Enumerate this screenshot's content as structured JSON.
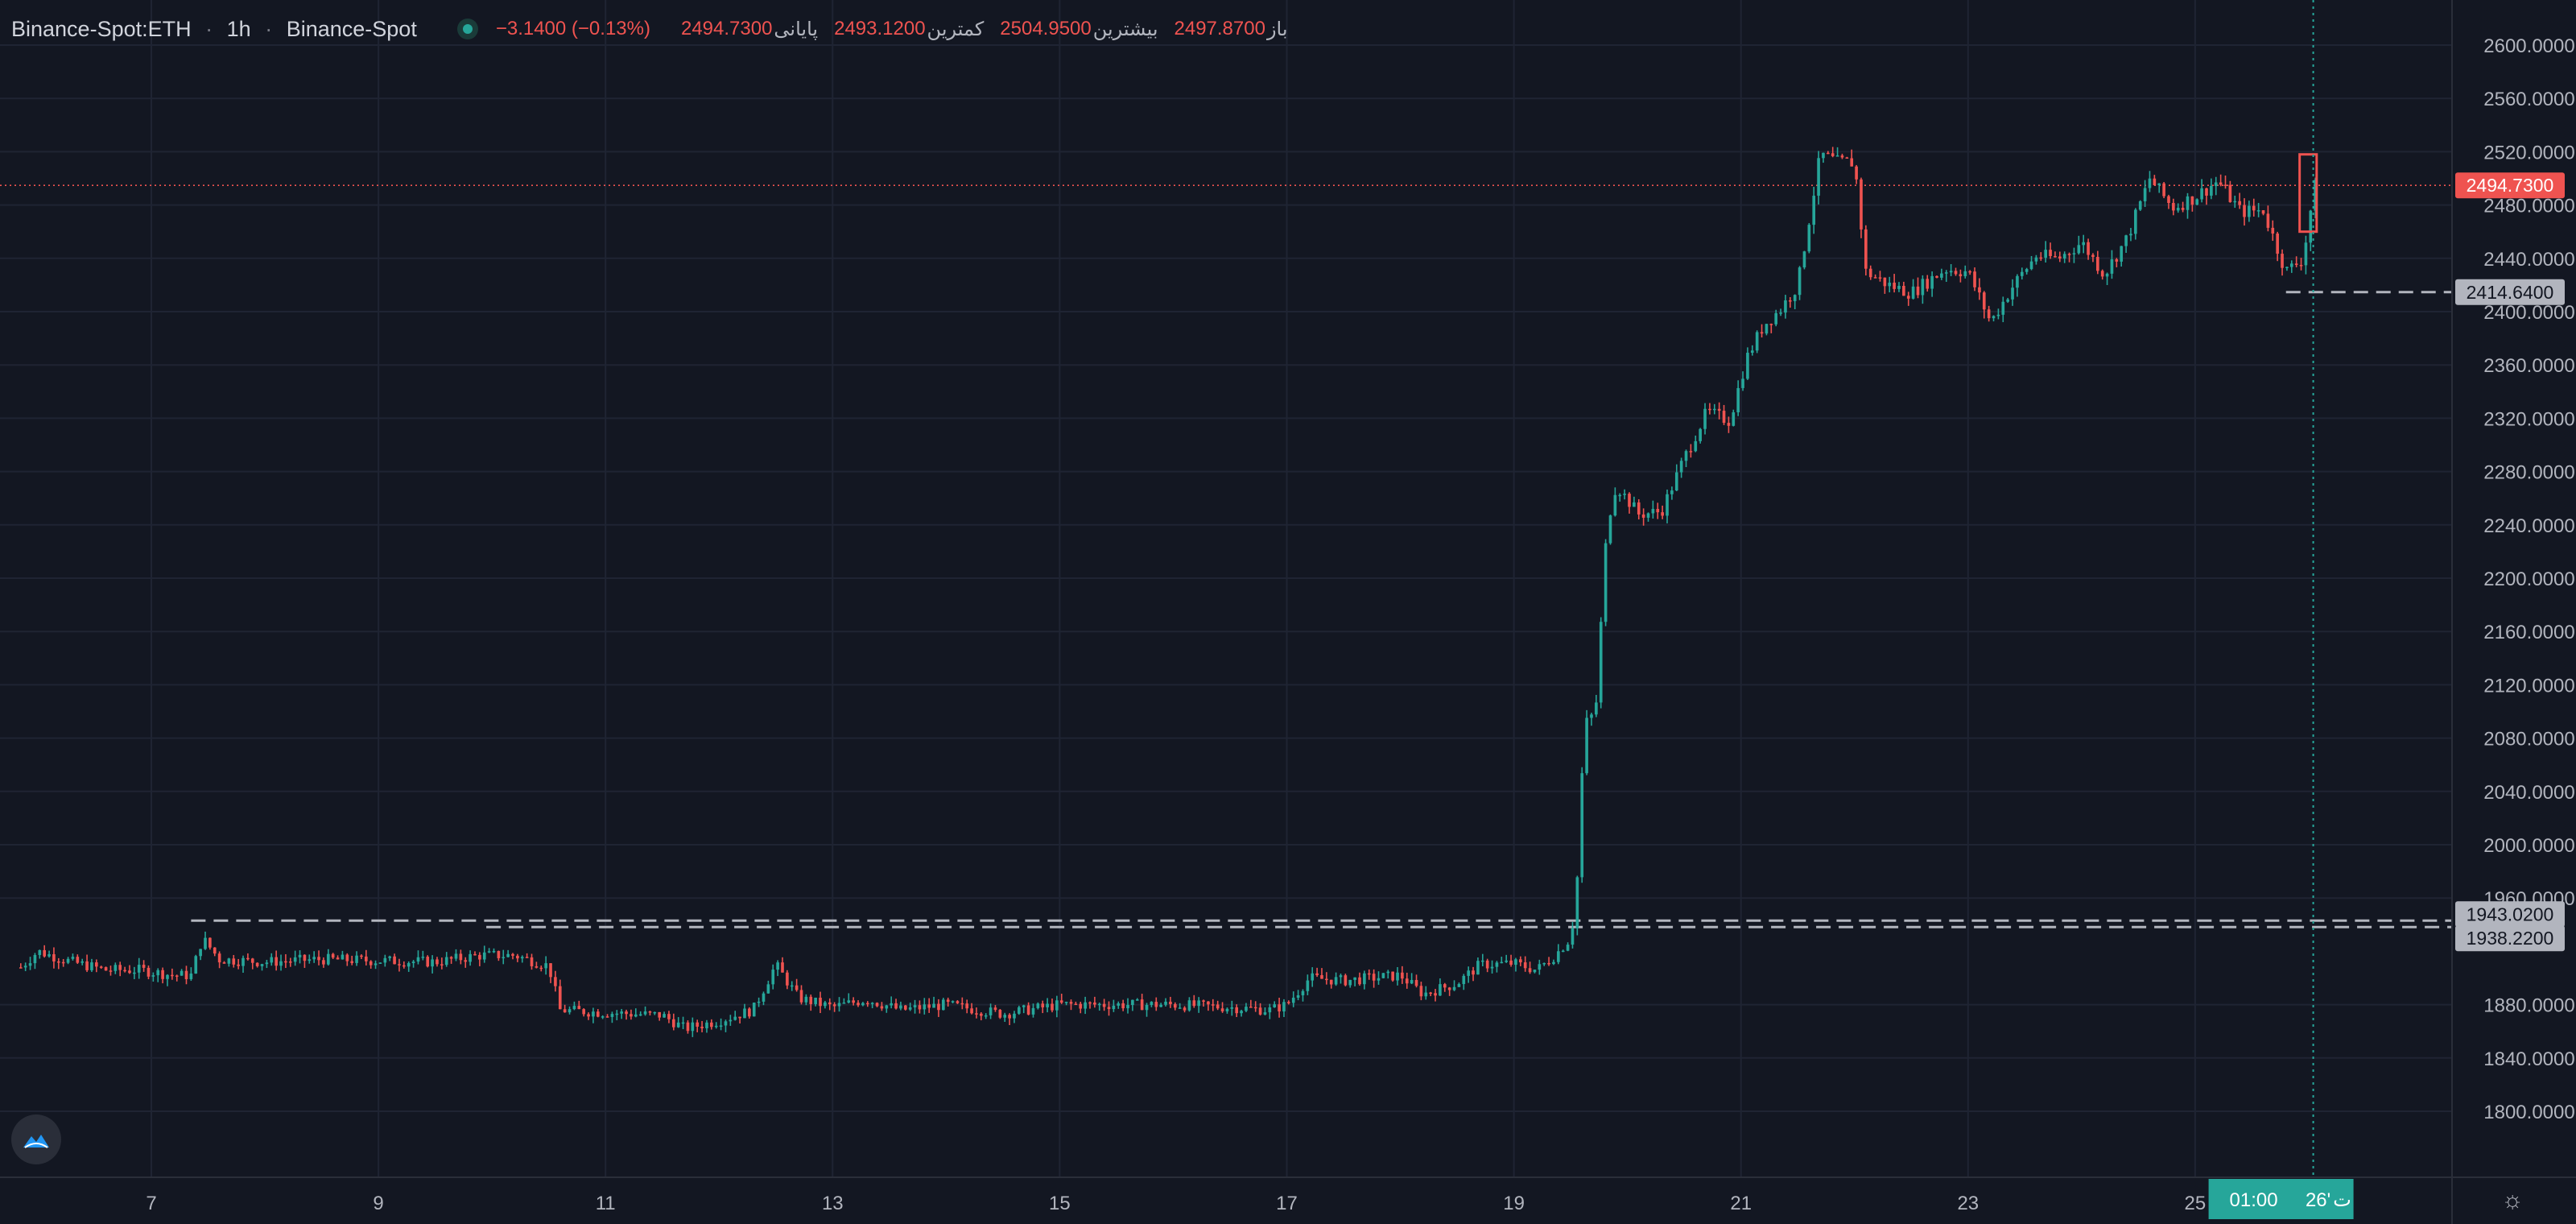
{
  "header": {
    "symbol": "Binance-Spot:ETH",
    "interval": "1h",
    "exchange": "Binance-Spot",
    "separator": "·",
    "open_label": "باز",
    "open_value": "2497.8700",
    "high_label": "بیشترین",
    "high_value": "2504.9500",
    "low_label": "کمترین",
    "low_value": "2493.1200",
    "close_label": "پایانی",
    "close_value": "2494.7300",
    "change": "−3.1400 (−0.13%)"
  },
  "icons": {
    "logo": "cloud-logo-icon",
    "settings": "gear-icon",
    "status": "live-status-dot-icon"
  },
  "colors": {
    "background": "#131722",
    "up": "#26a69a",
    "down": "#ef5350",
    "grid": "#1f2433",
    "text": "#b2b5be",
    "level_label": "#b2b5be",
    "time_label": "#26a69a"
  },
  "chart_data": {
    "type": "candlestick",
    "title": "",
    "xlabel": "",
    "ylabel": "",
    "ylim": [
      1780,
      2620
    ],
    "y_ticks": [
      "2600.0000",
      "2560.0000",
      "2520.0000",
      "2480.0000",
      "2440.0000",
      "2400.0000",
      "2360.0000",
      "2320.0000",
      "2280.0000",
      "2240.0000",
      "2200.0000",
      "2160.0000",
      "2120.0000",
      "2080.0000",
      "2040.0000",
      "2000.0000",
      "1960.0000",
      "1880.0000",
      "1840.0000",
      "1800.0000"
    ],
    "x_ticks": [
      {
        "label": "7",
        "day": 7
      },
      {
        "label": "9",
        "day": 9
      },
      {
        "label": "11",
        "day": 11
      },
      {
        "label": "13",
        "day": 13
      },
      {
        "label": "15",
        "day": 15
      },
      {
        "label": "17",
        "day": 17
      },
      {
        "label": "19",
        "day": 19
      },
      {
        "label": "21",
        "day": 21
      },
      {
        "label": "23",
        "day": 23
      },
      {
        "label": "25",
        "day": 25
      }
    ],
    "x_range_days": [
      5.85,
      26.3
    ],
    "crosshair": {
      "day_label": "26'",
      "time_label": "01:00",
      "suffix": "ت",
      "day": 26.04
    },
    "price_levels": [
      {
        "value": "2494.7300",
        "style": "current",
        "color": "#ef5350"
      },
      {
        "value": "2414.6400",
        "style": "dashed",
        "color": "#b2b5be",
        "from_day": 25.8
      },
      {
        "value": "1943.0200",
        "style": "dashed",
        "color": "#b2b5be",
        "from_day": 7.35
      },
      {
        "value": "1938.2200",
        "style": "dashed",
        "color": "#b2b5be",
        "from_day": 9.95
      }
    ],
    "highlight_box": {
      "from_day": 25.92,
      "to_day": 26.07,
      "low": 2460,
      "high": 2518
    },
    "candle_anchors": [
      [
        5.85,
        1908
      ],
      [
        6.0,
        1920
      ],
      [
        6.3,
        1912
      ],
      [
        6.6,
        1906
      ],
      [
        6.9,
        1906
      ],
      [
        7.2,
        1902
      ],
      [
        7.35,
        1902
      ],
      [
        7.45,
        1930
      ],
      [
        7.6,
        1914
      ],
      [
        8.0,
        1912
      ],
      [
        8.5,
        1914
      ],
      [
        9.0,
        1913
      ],
      [
        9.5,
        1912
      ],
      [
        9.9,
        1917
      ],
      [
        10.2,
        1917
      ],
      [
        10.5,
        1909
      ],
      [
        10.6,
        1876
      ],
      [
        11.0,
        1874
      ],
      [
        11.5,
        1872
      ],
      [
        11.7,
        1862
      ],
      [
        12.0,
        1868
      ],
      [
        12.3,
        1876
      ],
      [
        12.5,
        1910
      ],
      [
        12.7,
        1885
      ],
      [
        13.0,
        1878
      ],
      [
        13.3,
        1884
      ],
      [
        13.6,
        1876
      ],
      [
        14.0,
        1880
      ],
      [
        14.5,
        1873
      ],
      [
        15.0,
        1880
      ],
      [
        15.5,
        1880
      ],
      [
        16.0,
        1880
      ],
      [
        16.5,
        1878
      ],
      [
        16.85,
        1876
      ],
      [
        17.0,
        1880
      ],
      [
        17.2,
        1900
      ],
      [
        17.5,
        1898
      ],
      [
        18.0,
        1902
      ],
      [
        18.2,
        1888
      ],
      [
        18.5,
        1896
      ],
      [
        18.7,
        1910
      ],
      [
        19.0,
        1911
      ],
      [
        19.2,
        1906
      ],
      [
        19.35,
        1916
      ],
      [
        19.5,
        1930
      ],
      [
        19.55,
        1960
      ],
      [
        19.62,
        2090
      ],
      [
        19.72,
        2100
      ],
      [
        19.82,
        2240
      ],
      [
        19.9,
        2270
      ],
      [
        20.1,
        2248
      ],
      [
        20.3,
        2250
      ],
      [
        20.5,
        2290
      ],
      [
        20.7,
        2325
      ],
      [
        20.9,
        2318
      ],
      [
        21.05,
        2365
      ],
      [
        21.2,
        2390
      ],
      [
        21.35,
        2402
      ],
      [
        21.5,
        2420
      ],
      [
        21.7,
        2518
      ],
      [
        21.85,
        2512
      ],
      [
        22.0,
        2512
      ],
      [
        22.1,
        2430
      ],
      [
        22.3,
        2420
      ],
      [
        22.5,
        2414
      ],
      [
        22.8,
        2432
      ],
      [
        23.0,
        2430
      ],
      [
        23.2,
        2392
      ],
      [
        23.4,
        2420
      ],
      [
        23.6,
        2442
      ],
      [
        23.8,
        2440
      ],
      [
        24.0,
        2452
      ],
      [
        24.2,
        2428
      ],
      [
        24.4,
        2455
      ],
      [
        24.6,
        2500
      ],
      [
        24.8,
        2478
      ],
      [
        25.0,
        2486
      ],
      [
        25.2,
        2498
      ],
      [
        25.4,
        2475
      ],
      [
        25.6,
        2476
      ],
      [
        25.8,
        2430
      ],
      [
        25.95,
        2440
      ],
      [
        26.05,
        2494
      ]
    ]
  }
}
